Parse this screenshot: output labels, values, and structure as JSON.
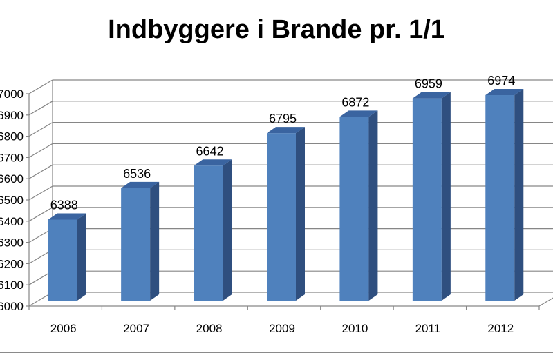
{
  "chart_data": {
    "type": "bar",
    "title": "Indbyggere i Brande pr. 1/1",
    "categories": [
      "2006",
      "2007",
      "2008",
      "2009",
      "2010",
      "2011",
      "2012"
    ],
    "values": [
      6388,
      6536,
      6642,
      6795,
      6872,
      6959,
      6974
    ],
    "ylim": [
      6000,
      7000
    ],
    "ytick_step": 100,
    "grid": true,
    "legend": "none",
    "bar_color": "#4f81bd",
    "bar_side_color": "#2f4f7f",
    "bar_top_color": "#3a64a0"
  }
}
